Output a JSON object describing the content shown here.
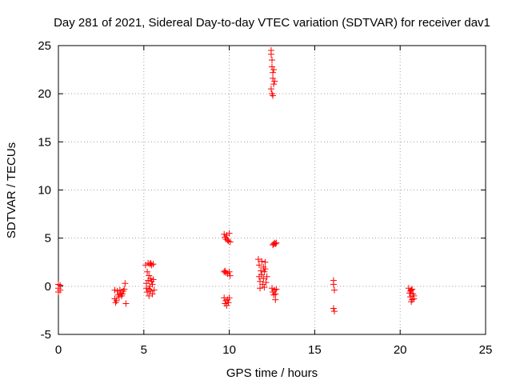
{
  "chart_data": {
    "type": "scatter",
    "title": "Day 281 of 2021, Sidereal Day-to-day VTEC variation (SDTVAR) for receiver dav1",
    "xlabel": "GPS time / hours",
    "ylabel": "SDTVAR / TECUs",
    "xlim": [
      0,
      25
    ],
    "ylim": [
      -5,
      25
    ],
    "xticks": [
      "0",
      "5",
      "10",
      "15",
      "20",
      "25"
    ],
    "yticks": [
      "-5",
      "0",
      "5",
      "10",
      "15",
      "20",
      "25"
    ],
    "grid": true,
    "marker": "+",
    "series": [
      {
        "name": "dav1",
        "color": "#ff0000",
        "points": [
          [
            0.0,
            0.2
          ],
          [
            0.0,
            -0.2
          ],
          [
            0.0,
            -0.6
          ],
          [
            0.1,
            0.1
          ],
          [
            0.1,
            -0.4
          ],
          [
            3.3,
            -0.4
          ],
          [
            3.3,
            -1.3
          ],
          [
            3.35,
            -1.7
          ],
          [
            3.4,
            -1.5
          ],
          [
            3.45,
            -0.5
          ],
          [
            3.5,
            -0.9
          ],
          [
            3.55,
            -1.1
          ],
          [
            3.6,
            -0.4
          ],
          [
            3.65,
            -0.7
          ],
          [
            3.7,
            -1.0
          ],
          [
            3.75,
            -0.8
          ],
          [
            3.8,
            -0.5
          ],
          [
            3.85,
            -0.3
          ],
          [
            3.9,
            0.3
          ],
          [
            3.95,
            -1.8
          ],
          [
            5.1,
            2.2
          ],
          [
            5.15,
            0.3
          ],
          [
            5.15,
            -0.2
          ],
          [
            5.2,
            1.5
          ],
          [
            5.2,
            -0.6
          ],
          [
            5.25,
            2.4
          ],
          [
            5.25,
            0.6
          ],
          [
            5.3,
            1.1
          ],
          [
            5.3,
            -0.3
          ],
          [
            5.3,
            -1.0
          ],
          [
            5.35,
            2.3
          ],
          [
            5.35,
            0.0
          ],
          [
            5.4,
            2.4
          ],
          [
            5.4,
            0.8
          ],
          [
            5.4,
            -0.5
          ],
          [
            5.45,
            2.2
          ],
          [
            5.45,
            0.5
          ],
          [
            5.5,
            -0.8
          ],
          [
            5.5,
            0.2
          ],
          [
            5.55,
            2.3
          ],
          [
            5.55,
            0.7
          ],
          [
            5.6,
            -0.4
          ],
          [
            9.7,
            5.4
          ],
          [
            9.75,
            5.1
          ],
          [
            9.8,
            4.9
          ],
          [
            9.85,
            5.3
          ],
          [
            9.9,
            4.8
          ],
          [
            9.95,
            4.7
          ],
          [
            10.0,
            5.5
          ],
          [
            10.05,
            4.6
          ],
          [
            9.7,
            1.5
          ],
          [
            9.75,
            1.6
          ],
          [
            9.8,
            1.4
          ],
          [
            9.9,
            1.3
          ],
          [
            10.0,
            1.5
          ],
          [
            10.05,
            1.1
          ],
          [
            9.7,
            -1.2
          ],
          [
            9.75,
            -1.8
          ],
          [
            9.8,
            -1.5
          ],
          [
            9.85,
            -2.0
          ],
          [
            9.9,
            -1.4
          ],
          [
            9.95,
            -1.7
          ],
          [
            10.0,
            -1.2
          ],
          [
            11.7,
            2.8
          ],
          [
            11.75,
            2.2
          ],
          [
            11.75,
            1.0
          ],
          [
            11.8,
            0.5
          ],
          [
            11.8,
            -0.2
          ],
          [
            11.85,
            1.6
          ],
          [
            11.9,
            2.6
          ],
          [
            11.9,
            1.2
          ],
          [
            11.95,
            0.2
          ],
          [
            12.0,
            2.0
          ],
          [
            12.0,
            0.8
          ],
          [
            12.05,
            1.5
          ],
          [
            12.05,
            -0.1
          ],
          [
            12.1,
            2.5
          ],
          [
            12.1,
            1.8
          ],
          [
            12.15,
            0.4
          ],
          [
            12.2,
            1.0
          ],
          [
            12.45,
            24.5
          ],
          [
            12.45,
            24.1
          ],
          [
            12.5,
            23.5
          ],
          [
            12.5,
            22.8
          ],
          [
            12.55,
            22.2
          ],
          [
            12.55,
            21.6
          ],
          [
            12.6,
            21.0
          ],
          [
            12.45,
            20.5
          ],
          [
            12.5,
            20.0
          ],
          [
            12.55,
            19.8
          ],
          [
            12.6,
            22.5
          ],
          [
            12.65,
            21.3
          ],
          [
            12.55,
            4.3
          ],
          [
            12.6,
            4.4
          ],
          [
            12.65,
            4.5
          ],
          [
            12.7,
            4.4
          ],
          [
            12.75,
            4.5
          ],
          [
            12.5,
            -0.2
          ],
          [
            12.55,
            -0.6
          ],
          [
            12.6,
            -0.9
          ],
          [
            12.65,
            -0.4
          ],
          [
            12.7,
            -0.8
          ],
          [
            12.75,
            -0.3
          ],
          [
            12.7,
            -1.4
          ],
          [
            16.1,
            0.6
          ],
          [
            16.1,
            0.2
          ],
          [
            16.15,
            -0.4
          ],
          [
            16.1,
            -2.3
          ],
          [
            16.15,
            -2.6
          ],
          [
            20.5,
            -0.2
          ],
          [
            20.55,
            -0.7
          ],
          [
            20.6,
            -1.1
          ],
          [
            20.65,
            -0.4
          ],
          [
            20.7,
            -1.4
          ],
          [
            20.75,
            -0.8
          ],
          [
            20.8,
            -1.0
          ],
          [
            20.6,
            -0.5
          ],
          [
            20.7,
            -0.3
          ],
          [
            20.8,
            -1.3
          ],
          [
            20.65,
            -1.6
          ]
        ]
      }
    ]
  }
}
